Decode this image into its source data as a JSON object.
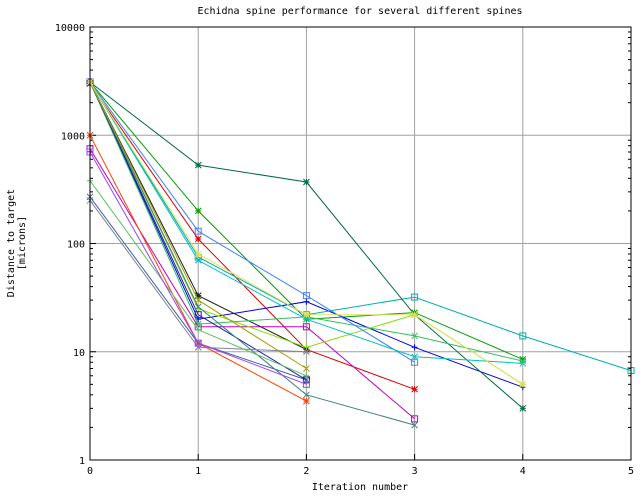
{
  "chart_data": {
    "type": "line",
    "title": "Echidna spine performance for several different spines",
    "xlabel": "Iteration number",
    "ylabel_lines": [
      "Distance to target",
      "[microns]"
    ],
    "y_scale": "log",
    "xlim": [
      0,
      5
    ],
    "ylim": [
      1,
      10000
    ],
    "x_ticks": [
      "0",
      "1",
      "2",
      "3",
      "4",
      "5"
    ],
    "y_ticks": [
      "1",
      "10",
      "100",
      "1000",
      "10000"
    ],
    "grid": true,
    "legend": "none",
    "series": [
      {
        "color": "#e00000",
        "marker": "star",
        "points": [
          [
            0,
            3000
          ],
          [
            1,
            110
          ],
          [
            2,
            10.5
          ],
          [
            3,
            4.5
          ]
        ]
      },
      {
        "color": "#00a000",
        "marker": "star",
        "points": [
          [
            0,
            3100
          ],
          [
            1,
            200
          ],
          [
            2,
            20
          ],
          [
            3,
            23
          ],
          [
            4,
            8.5
          ]
        ]
      },
      {
        "color": "#0000e0",
        "marker": "plus",
        "points": [
          [
            0,
            3100
          ],
          [
            1,
            20
          ],
          [
            2,
            29
          ],
          [
            3,
            11
          ],
          [
            4,
            4.7
          ]
        ]
      },
      {
        "color": "#c000c0",
        "marker": "square",
        "points": [
          [
            0,
            750
          ],
          [
            1,
            17
          ],
          [
            2,
            17
          ],
          [
            3,
            2.4
          ]
        ]
      },
      {
        "color": "#00b0b0",
        "marker": "square",
        "points": [
          [
            0,
            3100
          ],
          [
            1,
            75
          ],
          [
            2,
            22
          ],
          [
            3,
            32
          ],
          [
            4,
            14
          ],
          [
            5,
            6.7
          ]
        ]
      },
      {
        "color": "#202020",
        "marker": "star",
        "points": [
          [
            0,
            3100
          ],
          [
            1,
            33
          ],
          [
            2,
            10.5
          ]
        ]
      },
      {
        "color": "#ff4000",
        "marker": "star",
        "points": [
          [
            0,
            1000
          ],
          [
            1,
            12
          ],
          [
            2,
            3.5
          ]
        ]
      },
      {
        "color": "#006a40",
        "marker": "star",
        "points": [
          [
            0,
            3100
          ],
          [
            1,
            530
          ],
          [
            2,
            370
          ],
          [
            3,
            22
          ],
          [
            4,
            3
          ]
        ]
      },
      {
        "color": "#80e000",
        "marker": "plus",
        "points": [
          [
            0,
            3100
          ],
          [
            1,
            25
          ],
          [
            2,
            11
          ],
          [
            3,
            22
          ],
          [
            4,
            5
          ]
        ]
      },
      {
        "color": "#30c060",
        "marker": "x",
        "points": [
          [
            0,
            3100
          ],
          [
            1,
            18
          ],
          [
            2,
            21
          ],
          [
            3,
            14
          ],
          [
            4,
            8.2
          ]
        ]
      },
      {
        "color": "#4080ff",
        "marker": "square",
        "points": [
          [
            0,
            3100
          ],
          [
            1,
            130
          ],
          [
            2,
            33
          ],
          [
            3,
            8
          ]
        ]
      },
      {
        "color": "#4060a0",
        "marker": "x",
        "points": [
          [
            0,
            270
          ],
          [
            1,
            12
          ],
          [
            2,
            5.5
          ]
        ]
      },
      {
        "color": "#2020a0",
        "marker": "square",
        "points": [
          [
            0,
            3100
          ],
          [
            1,
            22
          ],
          [
            2,
            5.5
          ]
        ]
      },
      {
        "color": "#8080a0",
        "marker": "x",
        "points": [
          [
            0,
            250
          ],
          [
            1,
            11
          ],
          [
            2,
            10
          ]
        ]
      },
      {
        "color": "#00c0c0",
        "marker": "x",
        "points": [
          [
            0,
            3100
          ],
          [
            1,
            70
          ],
          [
            2,
            20
          ],
          [
            3,
            9
          ],
          [
            4,
            7.8
          ]
        ]
      },
      {
        "color": "#408080",
        "marker": "x",
        "points": [
          [
            0,
            3100
          ],
          [
            1,
            26
          ],
          [
            2,
            4
          ],
          [
            3,
            2.1
          ]
        ]
      },
      {
        "color": "#a0a000",
        "marker": "x",
        "points": [
          [
            0,
            3100
          ],
          [
            1,
            30
          ],
          [
            2,
            7
          ]
        ]
      },
      {
        "color": "#60c060",
        "marker": "plus",
        "points": [
          [
            0,
            380
          ],
          [
            1,
            16
          ],
          [
            2,
            6
          ]
        ]
      },
      {
        "color": "#e0e060",
        "marker": "star",
        "points": [
          [
            0,
            3100
          ],
          [
            1,
            80
          ],
          [
            2,
            22
          ],
          [
            3,
            22
          ],
          [
            4,
            5
          ]
        ]
      },
      {
        "color": "#a040ff",
        "marker": "square",
        "points": [
          [
            0,
            700
          ],
          [
            1,
            12
          ],
          [
            2,
            5
          ]
        ]
      }
    ]
  }
}
